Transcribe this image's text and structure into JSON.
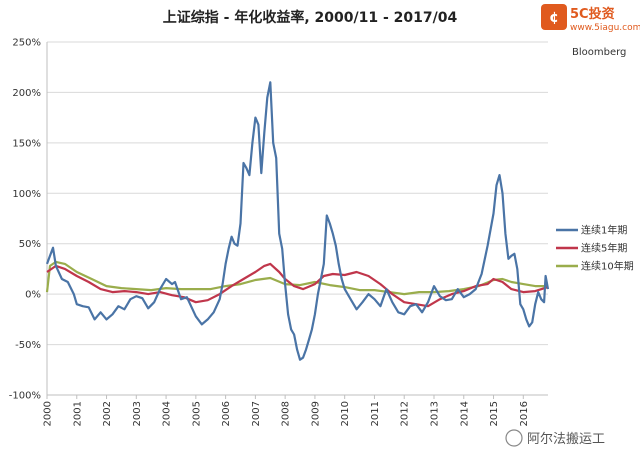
{
  "logo": {
    "brand": "5C投资",
    "url": "www.5iagu.com"
  },
  "source": "Bloomberg",
  "watermark": "阿尔法搬运工",
  "chart_data": {
    "type": "line",
    "title": "上证综指 - 年化收益率, 2000/11 - 2017/04",
    "xlabel": "",
    "ylabel": "",
    "ylim": [
      -100,
      250
    ],
    "xlim": [
      2000.0,
      2016.83
    ],
    "y_ticks": [
      "250%",
      "200%",
      "150%",
      "100%",
      "50%",
      "0%",
      "-50%",
      "-100%"
    ],
    "x_ticks": [
      "2000",
      "2001",
      "2002",
      "2003",
      "2004",
      "2005",
      "2006",
      "2007",
      "2008",
      "2009",
      "2010",
      "2011",
      "2012",
      "2013",
      "2014",
      "2015",
      "2016"
    ],
    "grid": "horizontal",
    "legend_position": "right",
    "series": [
      {
        "name": "连续1年期",
        "color": "#4a74a6",
        "points": [
          [
            2000.0,
            30
          ],
          [
            2000.1,
            38
          ],
          [
            2000.2,
            46
          ],
          [
            2000.3,
            28
          ],
          [
            2000.5,
            15
          ],
          [
            2000.7,
            12
          ],
          [
            2000.9,
            0
          ],
          [
            2001.0,
            -10
          ],
          [
            2001.2,
            -12
          ],
          [
            2001.4,
            -13
          ],
          [
            2001.6,
            -25
          ],
          [
            2001.8,
            -18
          ],
          [
            2002.0,
            -25
          ],
          [
            2002.2,
            -20
          ],
          [
            2002.4,
            -12
          ],
          [
            2002.6,
            -15
          ],
          [
            2002.8,
            -5
          ],
          [
            2003.0,
            -2
          ],
          [
            2003.2,
            -4
          ],
          [
            2003.4,
            -14
          ],
          [
            2003.6,
            -8
          ],
          [
            2003.8,
            5
          ],
          [
            2004.0,
            15
          ],
          [
            2004.2,
            10
          ],
          [
            2004.3,
            12
          ],
          [
            2004.5,
            -5
          ],
          [
            2004.7,
            -3
          ],
          [
            2005.0,
            -22
          ],
          [
            2005.2,
            -30
          ],
          [
            2005.4,
            -25
          ],
          [
            2005.6,
            -18
          ],
          [
            2005.8,
            -5
          ],
          [
            2005.9,
            10
          ],
          [
            2006.0,
            30
          ],
          [
            2006.1,
            45
          ],
          [
            2006.2,
            57
          ],
          [
            2006.3,
            50
          ],
          [
            2006.4,
            48
          ],
          [
            2006.5,
            70
          ],
          [
            2006.6,
            130
          ],
          [
            2006.7,
            125
          ],
          [
            2006.8,
            118
          ],
          [
            2006.9,
            150
          ],
          [
            2007.0,
            175
          ],
          [
            2007.1,
            168
          ],
          [
            2007.2,
            120
          ],
          [
            2007.3,
            160
          ],
          [
            2007.4,
            195
          ],
          [
            2007.5,
            210
          ],
          [
            2007.6,
            150
          ],
          [
            2007.7,
            135
          ],
          [
            2007.8,
            60
          ],
          [
            2007.9,
            45
          ],
          [
            2008.0,
            10
          ],
          [
            2008.1,
            -20
          ],
          [
            2008.2,
            -35
          ],
          [
            2008.3,
            -40
          ],
          [
            2008.4,
            -55
          ],
          [
            2008.5,
            -65
          ],
          [
            2008.6,
            -63
          ],
          [
            2008.7,
            -55
          ],
          [
            2008.8,
            -45
          ],
          [
            2008.9,
            -35
          ],
          [
            2009.0,
            -20
          ],
          [
            2009.1,
            0
          ],
          [
            2009.2,
            15
          ],
          [
            2009.3,
            30
          ],
          [
            2009.4,
            78
          ],
          [
            2009.5,
            70
          ],
          [
            2009.6,
            60
          ],
          [
            2009.7,
            48
          ],
          [
            2009.8,
            30
          ],
          [
            2009.9,
            15
          ],
          [
            2010.0,
            5
          ],
          [
            2010.2,
            -5
          ],
          [
            2010.4,
            -15
          ],
          [
            2010.6,
            -8
          ],
          [
            2010.8,
            0
          ],
          [
            2011.0,
            -5
          ],
          [
            2011.2,
            -12
          ],
          [
            2011.4,
            5
          ],
          [
            2011.6,
            -8
          ],
          [
            2011.8,
            -18
          ],
          [
            2012.0,
            -20
          ],
          [
            2012.2,
            -12
          ],
          [
            2012.4,
            -10
          ],
          [
            2012.6,
            -18
          ],
          [
            2012.8,
            -8
          ],
          [
            2013.0,
            8
          ],
          [
            2013.2,
            -2
          ],
          [
            2013.4,
            -6
          ],
          [
            2013.6,
            -5
          ],
          [
            2013.8,
            5
          ],
          [
            2014.0,
            -3
          ],
          [
            2014.2,
            0
          ],
          [
            2014.4,
            5
          ],
          [
            2014.6,
            20
          ],
          [
            2014.8,
            48
          ],
          [
            2015.0,
            80
          ],
          [
            2015.1,
            108
          ],
          [
            2015.2,
            118
          ],
          [
            2015.3,
            100
          ],
          [
            2015.4,
            60
          ],
          [
            2015.5,
            35
          ],
          [
            2015.6,
            38
          ],
          [
            2015.7,
            40
          ],
          [
            2015.8,
            25
          ],
          [
            2015.9,
            -10
          ],
          [
            2016.0,
            -15
          ],
          [
            2016.1,
            -25
          ],
          [
            2016.2,
            -32
          ],
          [
            2016.3,
            -28
          ],
          [
            2016.4,
            -10
          ],
          [
            2016.5,
            2
          ],
          [
            2016.6,
            -5
          ],
          [
            2016.7,
            -8
          ],
          [
            2016.75,
            18
          ],
          [
            2016.83,
            5
          ]
        ]
      },
      {
        "name": "连续5年期",
        "color": "#c0364b",
        "points": [
          [
            2000.0,
            22
          ],
          [
            2000.3,
            28
          ],
          [
            2000.6,
            25
          ],
          [
            2001.0,
            18
          ],
          [
            2001.4,
            12
          ],
          [
            2001.8,
            5
          ],
          [
            2002.2,
            2
          ],
          [
            2002.6,
            3
          ],
          [
            2003.0,
            2
          ],
          [
            2003.4,
            0
          ],
          [
            2003.8,
            2
          ],
          [
            2004.2,
            -1
          ],
          [
            2004.6,
            -3
          ],
          [
            2005.0,
            -8
          ],
          [
            2005.4,
            -6
          ],
          [
            2005.8,
            0
          ],
          [
            2006.2,
            8
          ],
          [
            2006.6,
            15
          ],
          [
            2007.0,
            22
          ],
          [
            2007.3,
            28
          ],
          [
            2007.5,
            30
          ],
          [
            2007.8,
            22
          ],
          [
            2008.0,
            15
          ],
          [
            2008.3,
            8
          ],
          [
            2008.6,
            5
          ],
          [
            2009.0,
            10
          ],
          [
            2009.3,
            18
          ],
          [
            2009.6,
            20
          ],
          [
            2010.0,
            19
          ],
          [
            2010.4,
            22
          ],
          [
            2010.8,
            18
          ],
          [
            2011.2,
            10
          ],
          [
            2011.6,
            0
          ],
          [
            2012.0,
            -8
          ],
          [
            2012.4,
            -10
          ],
          [
            2012.8,
            -12
          ],
          [
            2013.2,
            -5
          ],
          [
            2013.6,
            0
          ],
          [
            2014.0,
            3
          ],
          [
            2014.4,
            8
          ],
          [
            2014.8,
            10
          ],
          [
            2015.0,
            15
          ],
          [
            2015.3,
            12
          ],
          [
            2015.6,
            5
          ],
          [
            2016.0,
            2
          ],
          [
            2016.4,
            3
          ],
          [
            2016.83,
            7
          ]
        ]
      },
      {
        "name": "连续10年期",
        "color": "#9aad4c",
        "points": [
          [
            2000.0,
            2
          ],
          [
            2000.1,
            28
          ],
          [
            2000.3,
            32
          ],
          [
            2000.6,
            30
          ],
          [
            2001.0,
            22
          ],
          [
            2001.5,
            15
          ],
          [
            2002.0,
            8
          ],
          [
            2002.5,
            6
          ],
          [
            2003.0,
            5
          ],
          [
            2003.5,
            4
          ],
          [
            2004.0,
            6
          ],
          [
            2004.5,
            5
          ],
          [
            2005.0,
            5
          ],
          [
            2005.5,
            5
          ],
          [
            2006.0,
            8
          ],
          [
            2006.5,
            10
          ],
          [
            2007.0,
            14
          ],
          [
            2007.5,
            16
          ],
          [
            2008.0,
            10
          ],
          [
            2008.5,
            9
          ],
          [
            2009.0,
            12
          ],
          [
            2009.5,
            9
          ],
          [
            2010.0,
            7
          ],
          [
            2010.5,
            4
          ],
          [
            2011.0,
            4
          ],
          [
            2011.5,
            2
          ],
          [
            2012.0,
            0
          ],
          [
            2012.5,
            2
          ],
          [
            2013.0,
            2
          ],
          [
            2013.5,
            3
          ],
          [
            2014.0,
            5
          ],
          [
            2014.5,
            8
          ],
          [
            2015.0,
            14
          ],
          [
            2015.3,
            15
          ],
          [
            2015.6,
            12
          ],
          [
            2016.0,
            10
          ],
          [
            2016.4,
            8
          ],
          [
            2016.83,
            8
          ]
        ]
      }
    ]
  }
}
